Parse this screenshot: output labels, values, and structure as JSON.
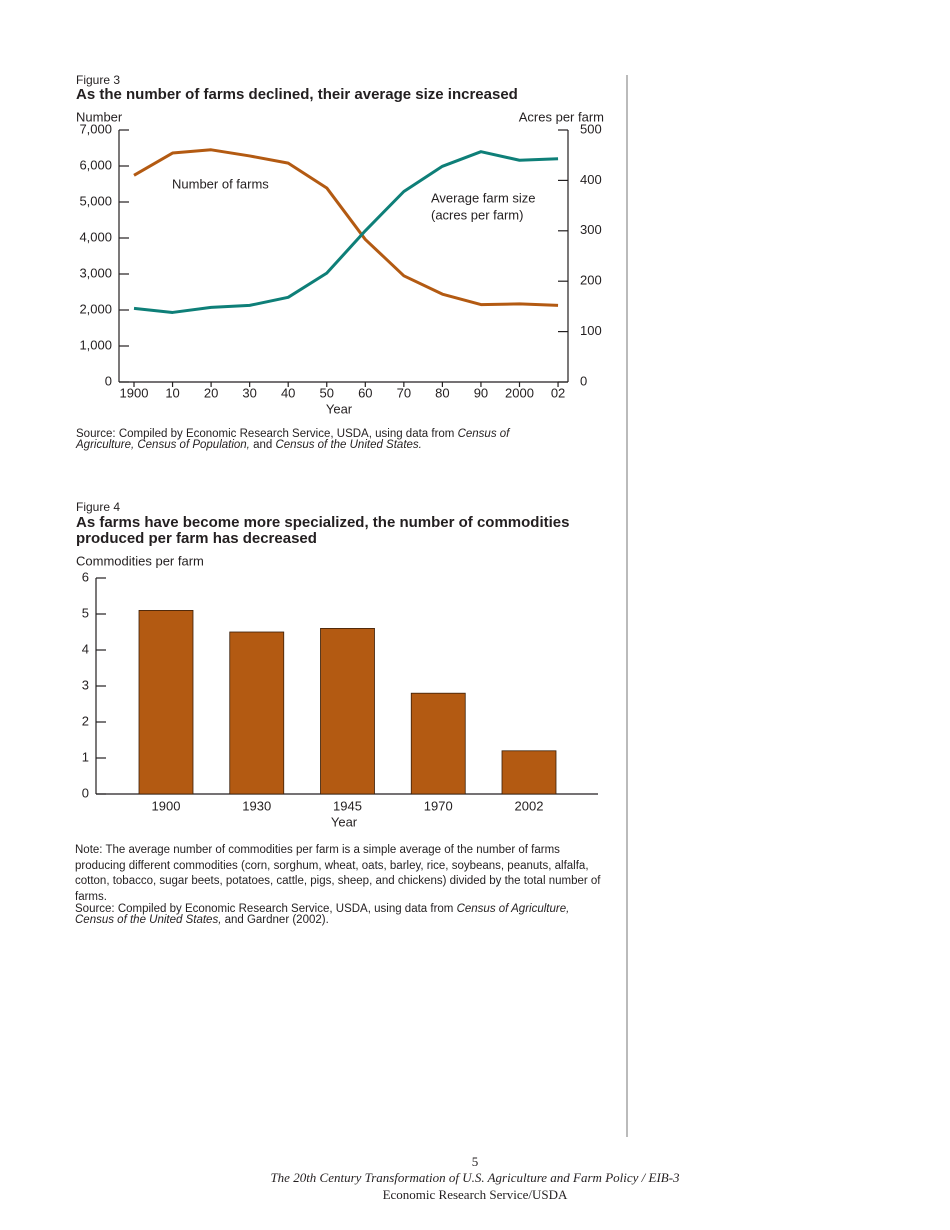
{
  "chart_data": [
    {
      "type": "line",
      "label": "Figure 3",
      "title": "As the number of farms declined, their average size increased",
      "ylabel": "Number",
      "y2label": "Acres per farm",
      "xlabel": "Year",
      "categories": [
        "1900",
        "10",
        "20",
        "30",
        "40",
        "50",
        "60",
        "70",
        "80",
        "90",
        "2000",
        "02"
      ],
      "series": [
        {
          "name": "Number of farms",
          "color": "#b35a12",
          "values": [
            5740,
            6360,
            6450,
            6280,
            6080,
            5390,
            3960,
            2950,
            2440,
            2150,
            2170,
            2130
          ]
        },
        {
          "name": "Average farm size",
          "color": "#0e7f78",
          "axis": "y2",
          "values": [
            146,
            138,
            148,
            152,
            168,
            216,
            300,
            378,
            428,
            457,
            440,
            443
          ]
        }
      ],
      "annotations": [
        "(acres per farm)"
      ],
      "ylim": [
        0,
        7000
      ],
      "yticks": [
        0,
        {
          "value": 1000,
          "label": "1,000"
        },
        {
          "value": 2000,
          "label": "2,000"
        },
        {
          "value": 3000,
          "label": "3,000"
        },
        {
          "value": 4000,
          "label": "4,000"
        },
        {
          "value": 5000,
          "label": "5,000"
        },
        {
          "value": 6000,
          "label": "6,000"
        },
        {
          "value": 7000,
          "label": "7,000"
        }
      ],
      "y2lim": [
        0,
        500
      ],
      "y2ticks": [
        0,
        100,
        200,
        300,
        400,
        500
      ],
      "source": [
        "Source: Compiled by Economic Research Service, USDA, using data from ",
        "Census of Agriculture, Census of Population,",
        " and ",
        "Census of the United States."
      ]
    },
    {
      "type": "bar",
      "label": "Figure 4",
      "title": "As farms have become more specialized, the number of commodities produced per farm has decreased",
      "ylabel": "Commodities per farm",
      "xlabel": "Year",
      "categories": [
        "1900",
        "1930",
        "1945",
        "1970",
        "2002"
      ],
      "values": [
        5.1,
        4.5,
        4.6,
        2.8,
        1.2
      ],
      "color": "#b35a12",
      "ylim": [
        0,
        6
      ],
      "yticks": [
        0,
        1,
        2,
        3,
        4,
        5,
        6
      ],
      "note": "Note: The average number of commodities per farm is a simple average of the number of farms producing different commodities (corn, sorghum, wheat, oats, barley, rice, soybeans, peanuts, alfalfa, cotton, tobacco, sugar beets, potatoes, cattle, pigs, sheep, and chickens) divided by the total number of farms.",
      "source": [
        "Source: Compiled by Economic Research Service, USDA, using data from ",
        "Census of Agriculture, Census of the United States,",
        " and Gardner (2002)."
      ]
    }
  ],
  "page": {
    "number": 5,
    "footer": [
      "The 20th Century Transformation of U.S. Agriculture and Farm Policy / EIB-3",
      "Economic Research Service/USDA"
    ]
  }
}
